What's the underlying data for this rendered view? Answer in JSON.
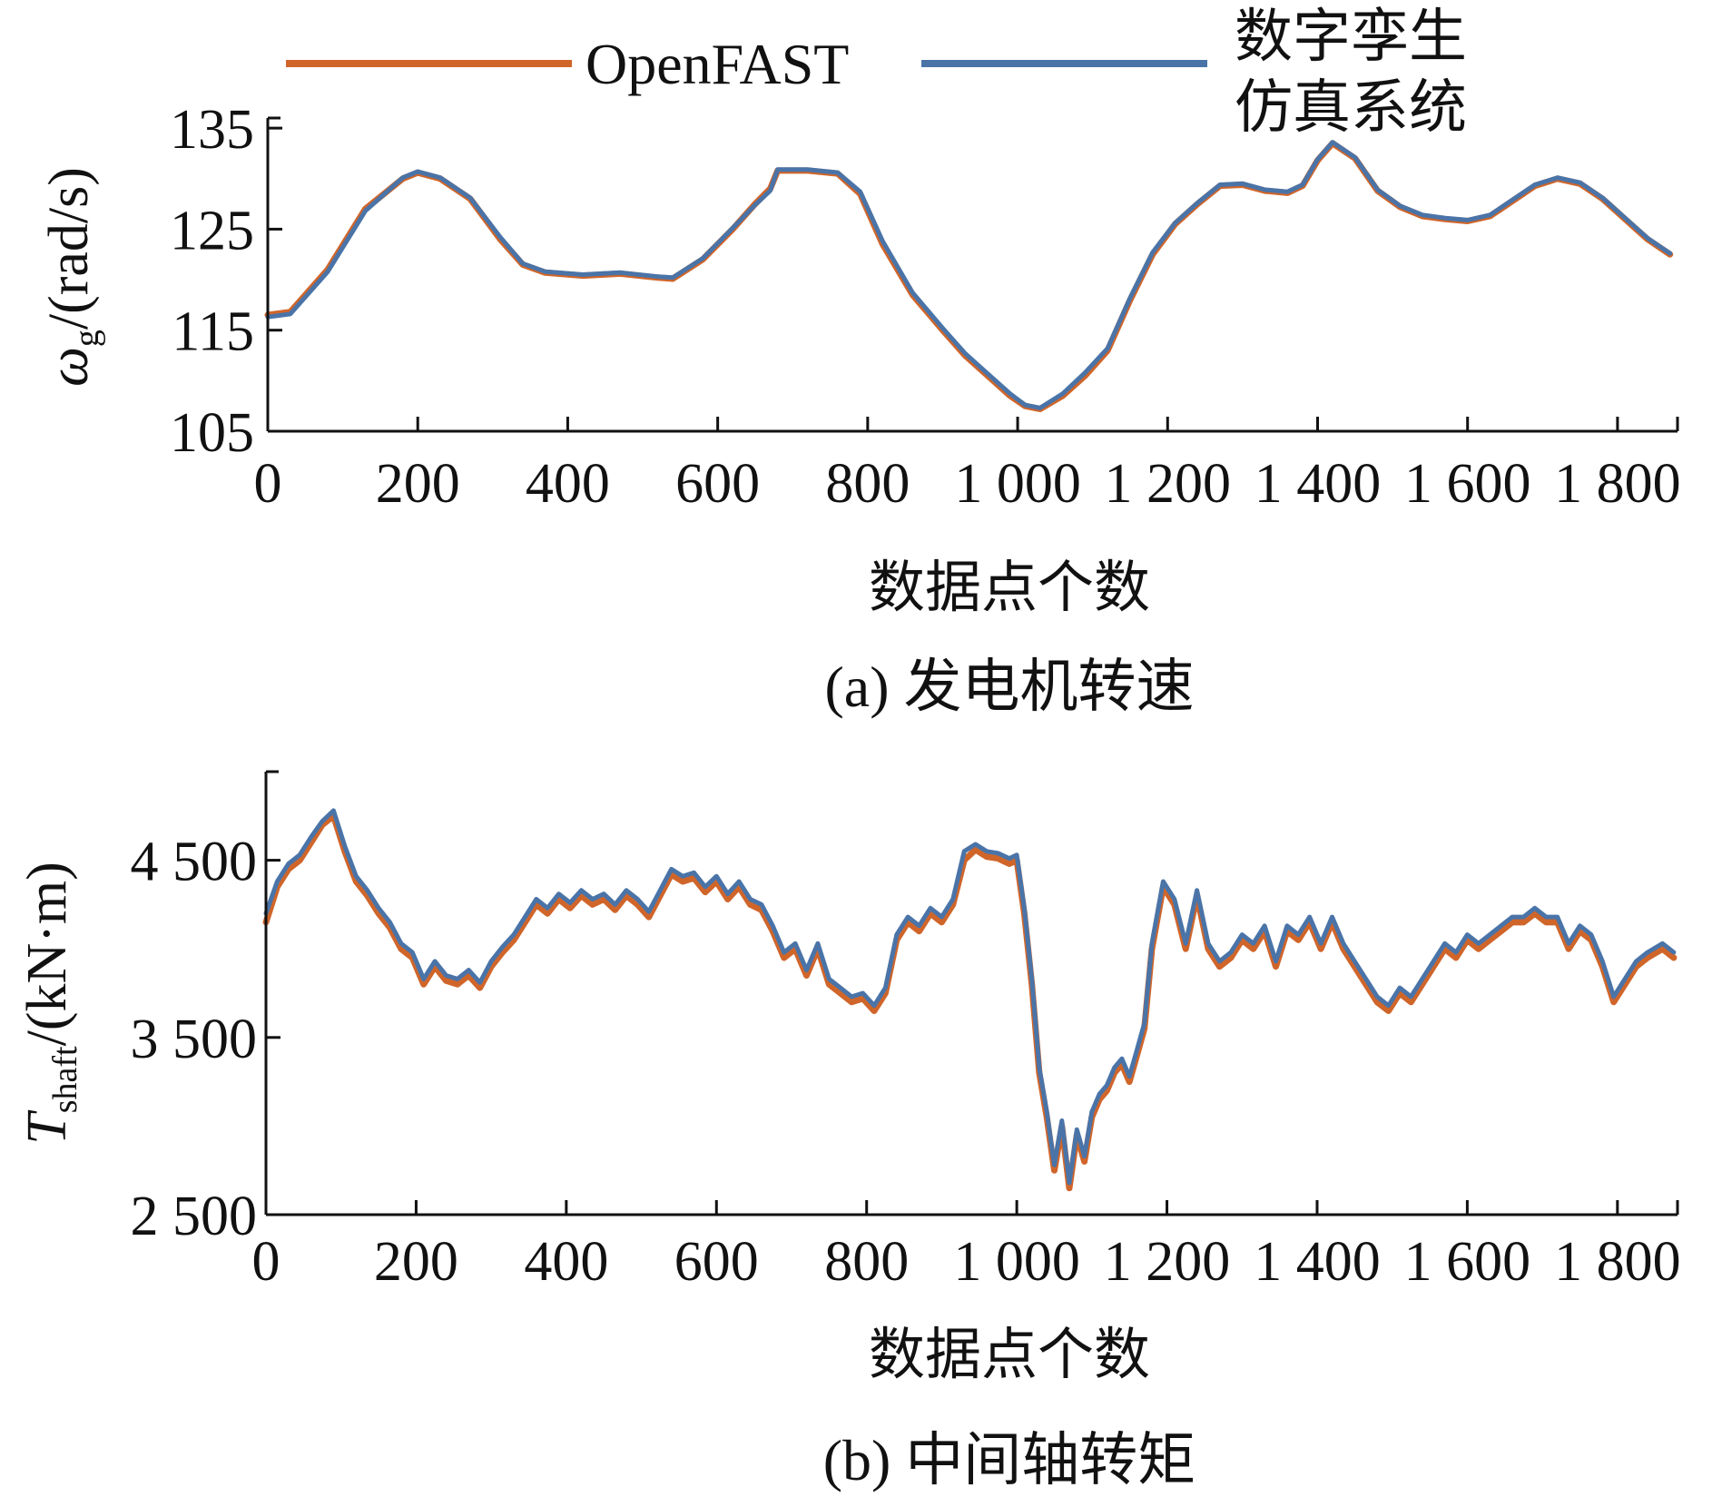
{
  "legend": {
    "series": [
      {
        "name": "OpenFAST",
        "color": "#d0652a"
      },
      {
        "name_line1": "数字孪生",
        "name_line2": "仿真系统",
        "color": "#4a74a8"
      }
    ]
  },
  "chart_data": [
    {
      "type": "line",
      "caption": "(a) 发电机转速",
      "xlabel": "数据点个数",
      "ylabel_main": "ω",
      "ylabel_sub": "g",
      "ylabel_unit": "/(rad/s)",
      "xlim": [
        0,
        1880
      ],
      "ylim": [
        105,
        136
      ],
      "xticks": [
        0,
        200,
        400,
        600,
        800,
        1000,
        1200,
        1400,
        1600,
        1800
      ],
      "xtick_labels": [
        "0",
        "200",
        "400",
        "600",
        "800",
        "1 000",
        "1 200",
        "1 400",
        "1 600",
        "1 800"
      ],
      "yticks": [
        105,
        115,
        125,
        135
      ],
      "ytick_labels": [
        "105",
        "115",
        "125",
        "135"
      ],
      "series": [
        {
          "name": "OpenFAST",
          "color": "#d0652a",
          "x": [
            0,
            30,
            80,
            130,
            180,
            200,
            230,
            270,
            310,
            340,
            370,
            420,
            470,
            520,
            540,
            580,
            620,
            650,
            670,
            680,
            720,
            760,
            790,
            820,
            860,
            900,
            930,
            960,
            990,
            1010,
            1030,
            1060,
            1090,
            1120,
            1150,
            1180,
            1210,
            1240,
            1270,
            1300,
            1330,
            1360,
            1380,
            1400,
            1420,
            1450,
            1480,
            1510,
            1540,
            1570,
            1600,
            1630,
            1660,
            1690,
            1720,
            1750,
            1780,
            1810,
            1840,
            1870
          ],
          "values": [
            116.5,
            116.8,
            121,
            127,
            130,
            130.6,
            130,
            128,
            124,
            121.5,
            120.7,
            120.4,
            120.6,
            120.2,
            120.1,
            122,
            125,
            127.5,
            129,
            130.8,
            130.8,
            130.5,
            128.5,
            123.5,
            118.5,
            115,
            112.5,
            110.5,
            108.5,
            107.5,
            107.2,
            108.5,
            110.5,
            113,
            118,
            122.5,
            125.5,
            127.5,
            129.3,
            129.4,
            128.8,
            128.6,
            129.3,
            131.8,
            133.5,
            132,
            128.8,
            127.2,
            126.3,
            126,
            125.8,
            126.3,
            127.8,
            129.3,
            130,
            129.5,
            128,
            126,
            124,
            122.5
          ]
        },
        {
          "name": "数字孪生仿真系统",
          "color": "#4a74a8",
          "x": [
            0,
            30,
            80,
            130,
            180,
            200,
            230,
            270,
            310,
            340,
            370,
            420,
            470,
            520,
            540,
            580,
            620,
            650,
            670,
            680,
            720,
            760,
            790,
            820,
            860,
            900,
            930,
            960,
            990,
            1010,
            1030,
            1060,
            1090,
            1120,
            1150,
            1180,
            1210,
            1240,
            1270,
            1300,
            1330,
            1360,
            1380,
            1400,
            1420,
            1450,
            1480,
            1510,
            1540,
            1570,
            1600,
            1630,
            1660,
            1690,
            1720,
            1750,
            1780,
            1810,
            1840,
            1870
          ],
          "values": [
            116.3,
            116.6,
            120.8,
            126.8,
            130.1,
            130.7,
            130.1,
            128.1,
            124.2,
            121.6,
            120.8,
            120.5,
            120.7,
            120.3,
            120.2,
            122.1,
            125.1,
            127.4,
            128.8,
            130.9,
            130.9,
            130.6,
            128.7,
            123.8,
            118.7,
            115.2,
            112.7,
            110.7,
            108.7,
            107.6,
            107.3,
            108.7,
            110.8,
            113.2,
            118.2,
            122.7,
            125.6,
            127.6,
            129.4,
            129.5,
            128.9,
            128.7,
            129.4,
            131.9,
            133.6,
            132.1,
            128.9,
            127.3,
            126.4,
            126.1,
            125.9,
            126.4,
            127.9,
            129.4,
            130.1,
            129.6,
            128.1,
            126.1,
            124.1,
            122.6
          ]
        }
      ]
    },
    {
      "type": "line",
      "caption": "(b) 中间轴转矩",
      "xlabel": "数据点个数",
      "ylabel_main": "T",
      "ylabel_sub": "shaft",
      "ylabel_unit": "/(kN·m)",
      "xlim": [
        0,
        1880
      ],
      "ylim": [
        2500,
        5000
      ],
      "xticks": [
        0,
        200,
        400,
        600,
        800,
        1000,
        1200,
        1400,
        1600,
        1800
      ],
      "xtick_labels": [
        "0",
        "200",
        "400",
        "600",
        "800",
        "1 000",
        "1 200",
        "1 400",
        "1 600",
        "1 800"
      ],
      "yticks": [
        2500,
        3500,
        4500
      ],
      "ytick_labels": [
        "2 500",
        "3 500",
        "4 500"
      ],
      "series": [
        {
          "name": "OpenFAST",
          "color": "#d0652a",
          "x": [
            0,
            15,
            30,
            45,
            60,
            75,
            90,
            105,
            120,
            135,
            150,
            165,
            180,
            195,
            210,
            225,
            240,
            255,
            270,
            285,
            300,
            315,
            330,
            345,
            360,
            375,
            390,
            405,
            420,
            435,
            450,
            465,
            480,
            495,
            510,
            525,
            540,
            555,
            570,
            585,
            600,
            615,
            630,
            645,
            660,
            675,
            690,
            705,
            720,
            735,
            750,
            765,
            780,
            795,
            810,
            825,
            840,
            855,
            870,
            885,
            900,
            915,
            930,
            945,
            960,
            975,
            990,
            1000,
            1010,
            1020,
            1030,
            1040,
            1050,
            1060,
            1070,
            1080,
            1090,
            1100,
            1110,
            1120,
            1130,
            1140,
            1150,
            1160,
            1170,
            1180,
            1195,
            1210,
            1225,
            1240,
            1255,
            1270,
            1285,
            1300,
            1315,
            1330,
            1345,
            1360,
            1375,
            1390,
            1405,
            1420,
            1435,
            1450,
            1465,
            1480,
            1495,
            1510,
            1525,
            1540,
            1555,
            1570,
            1585,
            1600,
            1615,
            1630,
            1645,
            1660,
            1675,
            1690,
            1705,
            1720,
            1735,
            1750,
            1765,
            1780,
            1795,
            1810,
            1825,
            1840,
            1860,
            1875
          ],
          "values": [
            4150,
            4350,
            4450,
            4500,
            4600,
            4700,
            4750,
            4550,
            4380,
            4300,
            4200,
            4120,
            4000,
            3950,
            3800,
            3900,
            3820,
            3800,
            3850,
            3780,
            3900,
            3980,
            4050,
            4150,
            4250,
            4200,
            4280,
            4230,
            4300,
            4250,
            4280,
            4220,
            4300,
            4250,
            4180,
            4300,
            4420,
            4380,
            4400,
            4320,
            4380,
            4280,
            4350,
            4250,
            4220,
            4100,
            3950,
            4000,
            3850,
            4000,
            3800,
            3750,
            3700,
            3720,
            3650,
            3750,
            4050,
            4150,
            4100,
            4200,
            4150,
            4250,
            4500,
            4560,
            4520,
            4510,
            4480,
            4500,
            4200,
            3800,
            3300,
            3050,
            2750,
            3000,
            2650,
            2950,
            2800,
            3050,
            3150,
            3200,
            3300,
            3350,
            3250,
            3400,
            3550,
            4000,
            4350,
            4250,
            4000,
            4300,
            4000,
            3900,
            3950,
            4050,
            4000,
            4100,
            3900,
            4100,
            4050,
            4150,
            4000,
            4150,
            4000,
            3900,
            3800,
            3700,
            3650,
            3750,
            3700,
            3800,
            3900,
            4000,
            3950,
            4050,
            4000,
            4050,
            4100,
            4150,
            4150,
            4200,
            4150,
            4150,
            4000,
            4100,
            4050,
            3900,
            3700,
            3800,
            3900,
            3950,
            4000,
            3950
          ]
        },
        {
          "name": "数字孪生仿真系统",
          "color": "#4a74a8",
          "x": [
            0,
            15,
            30,
            45,
            60,
            75,
            90,
            105,
            120,
            135,
            150,
            165,
            180,
            195,
            210,
            225,
            240,
            255,
            270,
            285,
            300,
            315,
            330,
            345,
            360,
            375,
            390,
            405,
            420,
            435,
            450,
            465,
            480,
            495,
            510,
            525,
            540,
            555,
            570,
            585,
            600,
            615,
            630,
            645,
            660,
            675,
            690,
            705,
            720,
            735,
            750,
            765,
            780,
            795,
            810,
            825,
            840,
            855,
            870,
            885,
            900,
            915,
            930,
            945,
            960,
            975,
            990,
            1000,
            1010,
            1020,
            1030,
            1040,
            1050,
            1060,
            1070,
            1080,
            1090,
            1100,
            1110,
            1120,
            1130,
            1140,
            1150,
            1160,
            1170,
            1180,
            1195,
            1210,
            1225,
            1240,
            1255,
            1270,
            1285,
            1300,
            1315,
            1330,
            1345,
            1360,
            1375,
            1390,
            1405,
            1420,
            1435,
            1450,
            1465,
            1480,
            1495,
            1510,
            1525,
            1540,
            1555,
            1570,
            1585,
            1600,
            1615,
            1630,
            1645,
            1660,
            1675,
            1690,
            1705,
            1720,
            1735,
            1750,
            1765,
            1780,
            1795,
            1810,
            1825,
            1840,
            1860,
            1875
          ],
          "values": [
            4200,
            4380,
            4480,
            4530,
            4630,
            4720,
            4780,
            4580,
            4410,
            4330,
            4230,
            4150,
            4030,
            3980,
            3830,
            3930,
            3850,
            3830,
            3880,
            3810,
            3930,
            4010,
            4080,
            4180,
            4280,
            4230,
            4310,
            4260,
            4330,
            4280,
            4310,
            4250,
            4330,
            4280,
            4210,
            4330,
            4450,
            4410,
            4430,
            4350,
            4410,
            4310,
            4380,
            4280,
            4250,
            4130,
            3980,
            4030,
            3880,
            4030,
            3830,
            3780,
            3730,
            3750,
            3680,
            3780,
            4080,
            4180,
            4130,
            4230,
            4180,
            4280,
            4550,
            4590,
            4550,
            4540,
            4510,
            4530,
            4230,
            3830,
            3330,
            3080,
            2780,
            3030,
            2680,
            2980,
            2830,
            3080,
            3180,
            3230,
            3330,
            3380,
            3280,
            3430,
            3580,
            4030,
            4380,
            4280,
            4030,
            4330,
            4030,
            3930,
            3980,
            4080,
            4030,
            4130,
            3930,
            4130,
            4080,
            4180,
            4030,
            4180,
            4030,
            3930,
            3830,
            3730,
            3680,
            3780,
            3730,
            3830,
            3930,
            4030,
            3980,
            4080,
            4030,
            4080,
            4130,
            4180,
            4180,
            4230,
            4180,
            4180,
            4030,
            4130,
            4080,
            3930,
            3730,
            3830,
            3930,
            3980,
            4030,
            3980
          ]
        }
      ]
    }
  ]
}
